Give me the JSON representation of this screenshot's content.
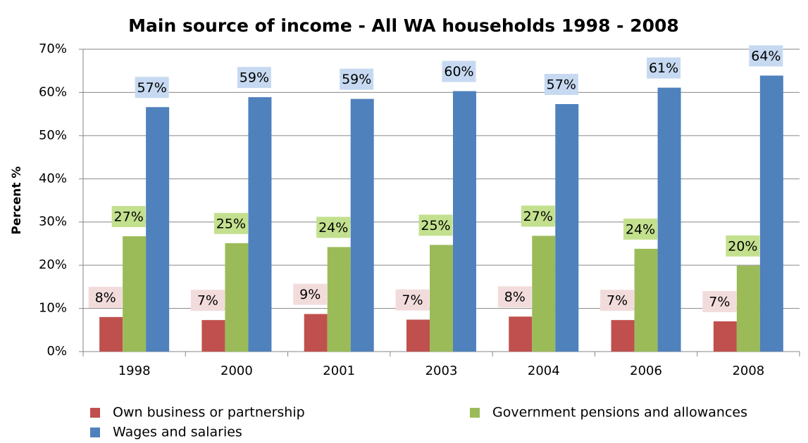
{
  "chart_data": {
    "type": "bar",
    "title": "Main source of income - All WA households 1998 - 2008",
    "y_axis_label": "Percent %",
    "categories": [
      "1998",
      "2000",
      "2001",
      "2003",
      "2004",
      "2006",
      "2008"
    ],
    "series": [
      {
        "name": "Own business or partnership",
        "color": "#c0504d",
        "label_color": "#f2dcdb",
        "values": [
          8.0,
          7.3,
          8.7,
          7.4,
          8.1,
          7.3,
          7.0
        ],
        "value_labels": [
          "8%",
          "7%",
          "9%",
          "7%",
          "8%",
          "7%",
          "7%"
        ]
      },
      {
        "name": "Government pensions and allowances",
        "color": "#9bbb59",
        "label_color": "#c3e08e",
        "values": [
          26.7,
          25.1,
          24.2,
          24.7,
          26.8,
          23.8,
          19.9
        ],
        "value_labels": [
          "27%",
          "25%",
          "24%",
          "25%",
          "27%",
          "24%",
          "20%"
        ]
      },
      {
        "name": "Wages and salaries",
        "color": "#4f81bd",
        "label_color": "#c6d9f1",
        "values": [
          56.6,
          58.9,
          58.5,
          60.3,
          57.3,
          61.1,
          63.9
        ],
        "value_labels": [
          "57%",
          "59%",
          "59%",
          "60%",
          "57%",
          "61%",
          "64%"
        ]
      }
    ],
    "ylim": [
      0,
      70
    ],
    "yticks": [
      {
        "value": 0,
        "label": "0%"
      },
      {
        "value": 10,
        "label": "10%"
      },
      {
        "value": 20,
        "label": "20%"
      },
      {
        "value": 30,
        "label": "30%"
      },
      {
        "value": 40,
        "label": "40%"
      },
      {
        "value": 50,
        "label": "50%"
      },
      {
        "value": 60,
        "label": "60%"
      },
      {
        "value": 70,
        "label": "70%"
      }
    ],
    "grid": true,
    "legend": "bottom"
  }
}
